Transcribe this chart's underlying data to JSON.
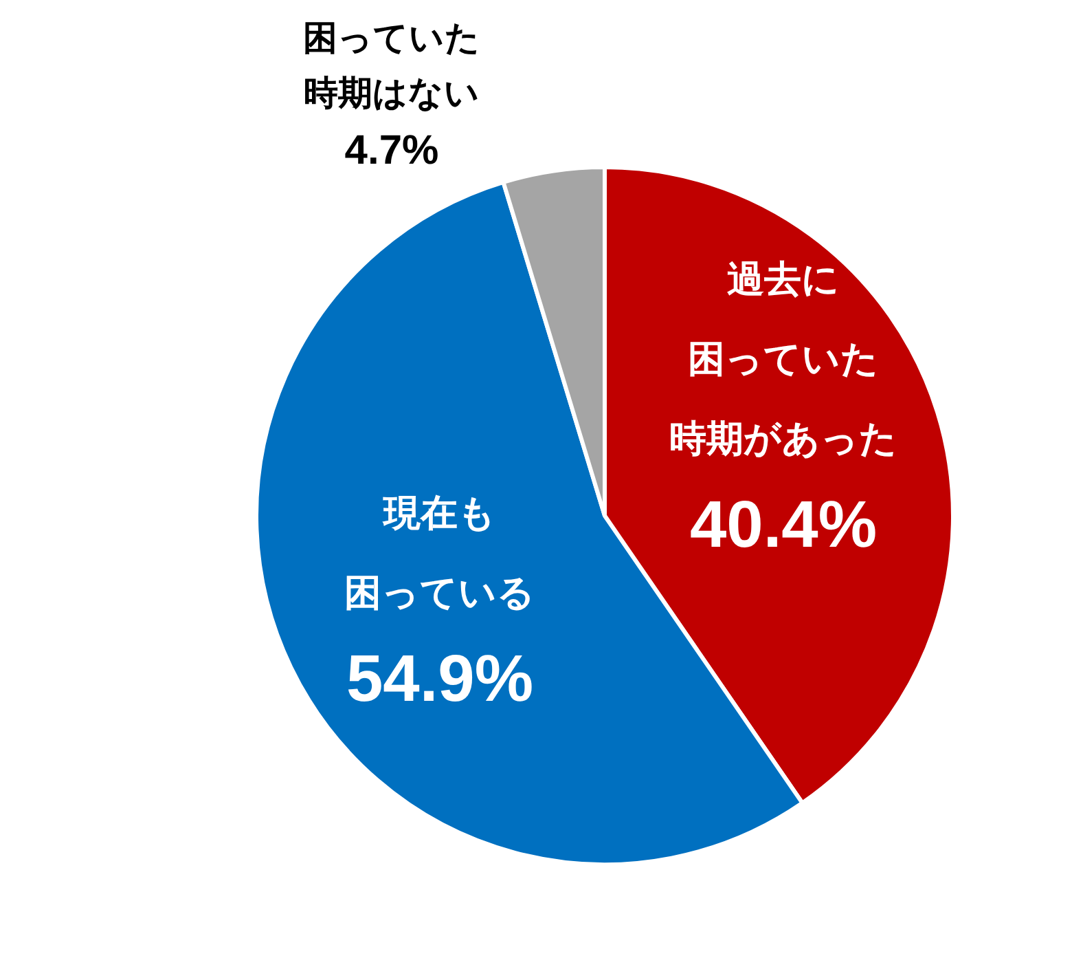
{
  "chart_data": {
    "type": "pie",
    "categories": [
      "過去に困っていた時期があった",
      "現在も困っている",
      "困っていた時期はない"
    ],
    "values": [
      40.4,
      54.9,
      4.7
    ],
    "colors": [
      "#c00000",
      "#0070c0",
      "#a5a5a5"
    ],
    "value_labels": [
      "40.4%",
      "54.9%",
      "4.7%"
    ],
    "legend": false
  }
}
